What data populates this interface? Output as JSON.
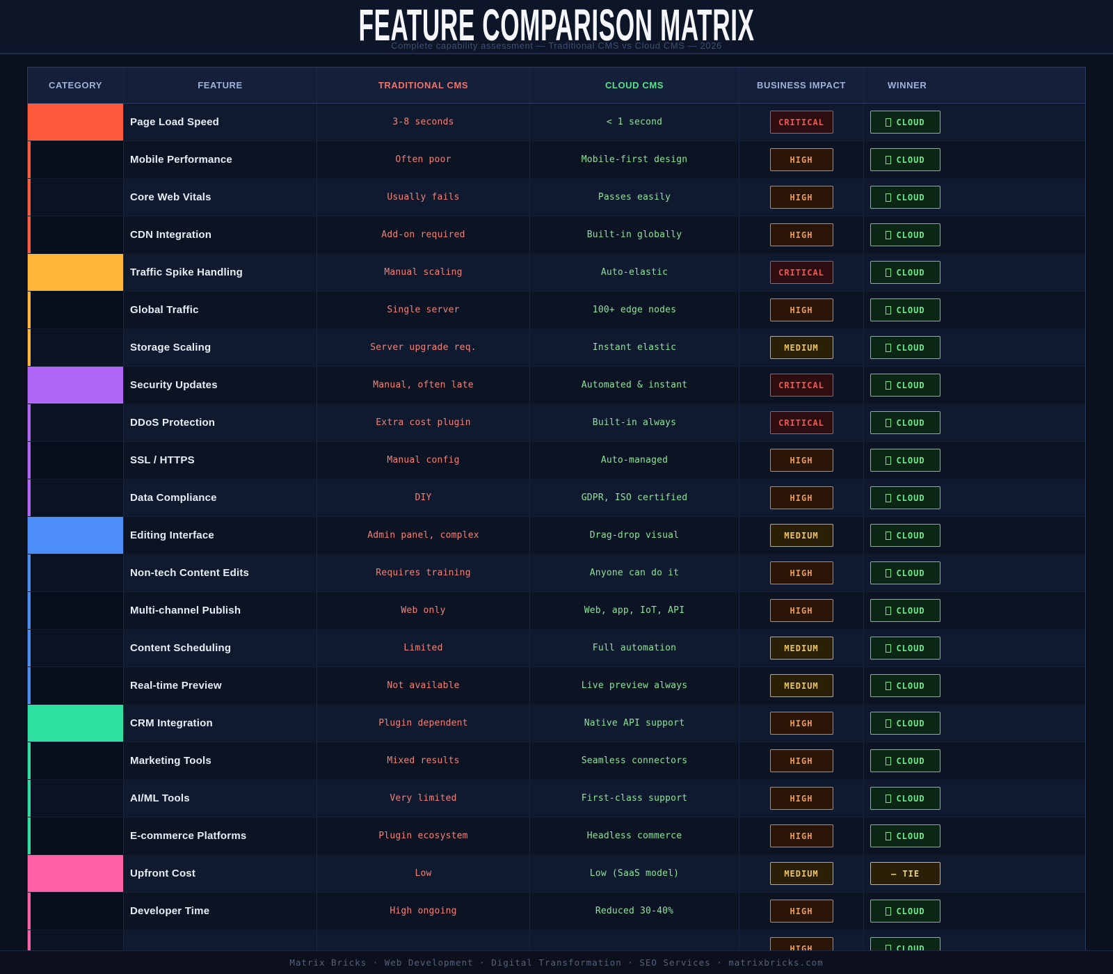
{
  "chart_data": {
    "type": "table",
    "title": "FEATURE COMPARISON MATRIX",
    "subtitle": "Complete capability assessment — Traditional CMS vs Cloud CMS — 2026",
    "columns": [
      "CATEGORY",
      "FEATURE",
      "TRADITIONAL CMS",
      "CLOUD CMS",
      "BUSINESS IMPACT",
      "WINNER"
    ],
    "category_colors": [
      "#ff5a3c",
      "#ffb636",
      "#b266f7",
      "#4d8df7",
      "#2ee0a0",
      "#ff5fa5"
    ],
    "header_colors": {
      "traditional": "#f0736b",
      "cloud": "#57e389",
      "default": "#9fb3d9"
    },
    "impact_colors": {
      "CRITICAL": "#f1564f",
      "HIGH": "#f0994f",
      "MEDIUM": "#f0c45f"
    },
    "winner_colors": {
      "CLOUD": "#70e98c",
      "TIE": "#ecd27b"
    },
    "winner_labels": {
      "CLOUD": "CLOUD",
      "TIE": "— TIE"
    },
    "rows": [
      {
        "feature": "Page Load Speed",
        "traditional": "3-8 seconds",
        "cloud": "< 1 second",
        "impact": "CRITICAL",
        "winner": "CLOUD",
        "group": 0,
        "group_start": true
      },
      {
        "feature": "Mobile Performance",
        "traditional": "Often poor",
        "cloud": "Mobile-first design",
        "impact": "HIGH",
        "winner": "CLOUD",
        "group": 0,
        "group_start": false
      },
      {
        "feature": "Core Web Vitals",
        "traditional": "Usually fails",
        "cloud": "Passes easily",
        "impact": "HIGH",
        "winner": "CLOUD",
        "group": 0,
        "group_start": false
      },
      {
        "feature": "CDN Integration",
        "traditional": "Add-on required",
        "cloud": "Built-in globally",
        "impact": "HIGH",
        "winner": "CLOUD",
        "group": 0,
        "group_start": false
      },
      {
        "feature": "Traffic Spike Handling",
        "traditional": "Manual scaling",
        "cloud": "Auto-elastic",
        "impact": "CRITICAL",
        "winner": "CLOUD",
        "group": 1,
        "group_start": true
      },
      {
        "feature": "Global Traffic",
        "traditional": "Single server",
        "cloud": "100+ edge nodes",
        "impact": "HIGH",
        "winner": "CLOUD",
        "group": 1,
        "group_start": false
      },
      {
        "feature": "Storage Scaling",
        "traditional": "Server upgrade req.",
        "cloud": "Instant elastic",
        "impact": "MEDIUM",
        "winner": "CLOUD",
        "group": 1,
        "group_start": false
      },
      {
        "feature": "Security Updates",
        "traditional": "Manual, often late",
        "cloud": "Automated & instant",
        "impact": "CRITICAL",
        "winner": "CLOUD",
        "group": 2,
        "group_start": true
      },
      {
        "feature": "DDoS Protection",
        "traditional": "Extra cost plugin",
        "cloud": "Built-in always",
        "impact": "CRITICAL",
        "winner": "CLOUD",
        "group": 2,
        "group_start": false
      },
      {
        "feature": "SSL / HTTPS",
        "traditional": "Manual config",
        "cloud": "Auto-managed",
        "impact": "HIGH",
        "winner": "CLOUD",
        "group": 2,
        "group_start": false
      },
      {
        "feature": "Data Compliance",
        "traditional": "DIY",
        "cloud": "GDPR, ISO certified",
        "impact": "HIGH",
        "winner": "CLOUD",
        "group": 2,
        "group_start": false
      },
      {
        "feature": "Editing Interface",
        "traditional": "Admin panel, complex",
        "cloud": "Drag-drop visual",
        "impact": "MEDIUM",
        "winner": "CLOUD",
        "group": 3,
        "group_start": true
      },
      {
        "feature": "Non-tech Content Edits",
        "traditional": "Requires training",
        "cloud": "Anyone can do it",
        "impact": "HIGH",
        "winner": "CLOUD",
        "group": 3,
        "group_start": false
      },
      {
        "feature": "Multi-channel Publish",
        "traditional": "Web only",
        "cloud": "Web, app, IoT, API",
        "impact": "HIGH",
        "winner": "CLOUD",
        "group": 3,
        "group_start": false
      },
      {
        "feature": "Content Scheduling",
        "traditional": "Limited",
        "cloud": "Full automation",
        "impact": "MEDIUM",
        "winner": "CLOUD",
        "group": 3,
        "group_start": false
      },
      {
        "feature": "Real-time Preview",
        "traditional": "Not available",
        "cloud": "Live preview always",
        "impact": "MEDIUM",
        "winner": "CLOUD",
        "group": 3,
        "group_start": false
      },
      {
        "feature": "CRM Integration",
        "traditional": "Plugin dependent",
        "cloud": "Native API support",
        "impact": "HIGH",
        "winner": "CLOUD",
        "group": 4,
        "group_start": true
      },
      {
        "feature": "Marketing Tools",
        "traditional": "Mixed results",
        "cloud": "Seamless connectors",
        "impact": "HIGH",
        "winner": "CLOUD",
        "group": 4,
        "group_start": false
      },
      {
        "feature": "AI/ML Tools",
        "traditional": "Very limited",
        "cloud": "First-class support",
        "impact": "HIGH",
        "winner": "CLOUD",
        "group": 4,
        "group_start": false
      },
      {
        "feature": "E-commerce Platforms",
        "traditional": "Plugin ecosystem",
        "cloud": "Headless commerce",
        "impact": "HIGH",
        "winner": "CLOUD",
        "group": 4,
        "group_start": false
      },
      {
        "feature": "Upfront Cost",
        "traditional": "Low",
        "cloud": "Low (SaaS model)",
        "impact": "MEDIUM",
        "winner": "TIE",
        "group": 5,
        "group_start": true
      },
      {
        "feature": "Developer Time",
        "traditional": "High ongoing",
        "cloud": "Reduced 30-40%",
        "impact": "HIGH",
        "winner": "CLOUD",
        "group": 5,
        "group_start": false
      },
      {
        "feature": "",
        "traditional": "",
        "cloud": "",
        "impact": "HIGH",
        "winner": "CLOUD",
        "group": 5,
        "group_start": false
      }
    ]
  },
  "footer": {
    "text": "Matrix Bricks  ·  Web Development  ·  Digital Transformation  ·  SEO Services  ·  matrixbricks.com"
  }
}
